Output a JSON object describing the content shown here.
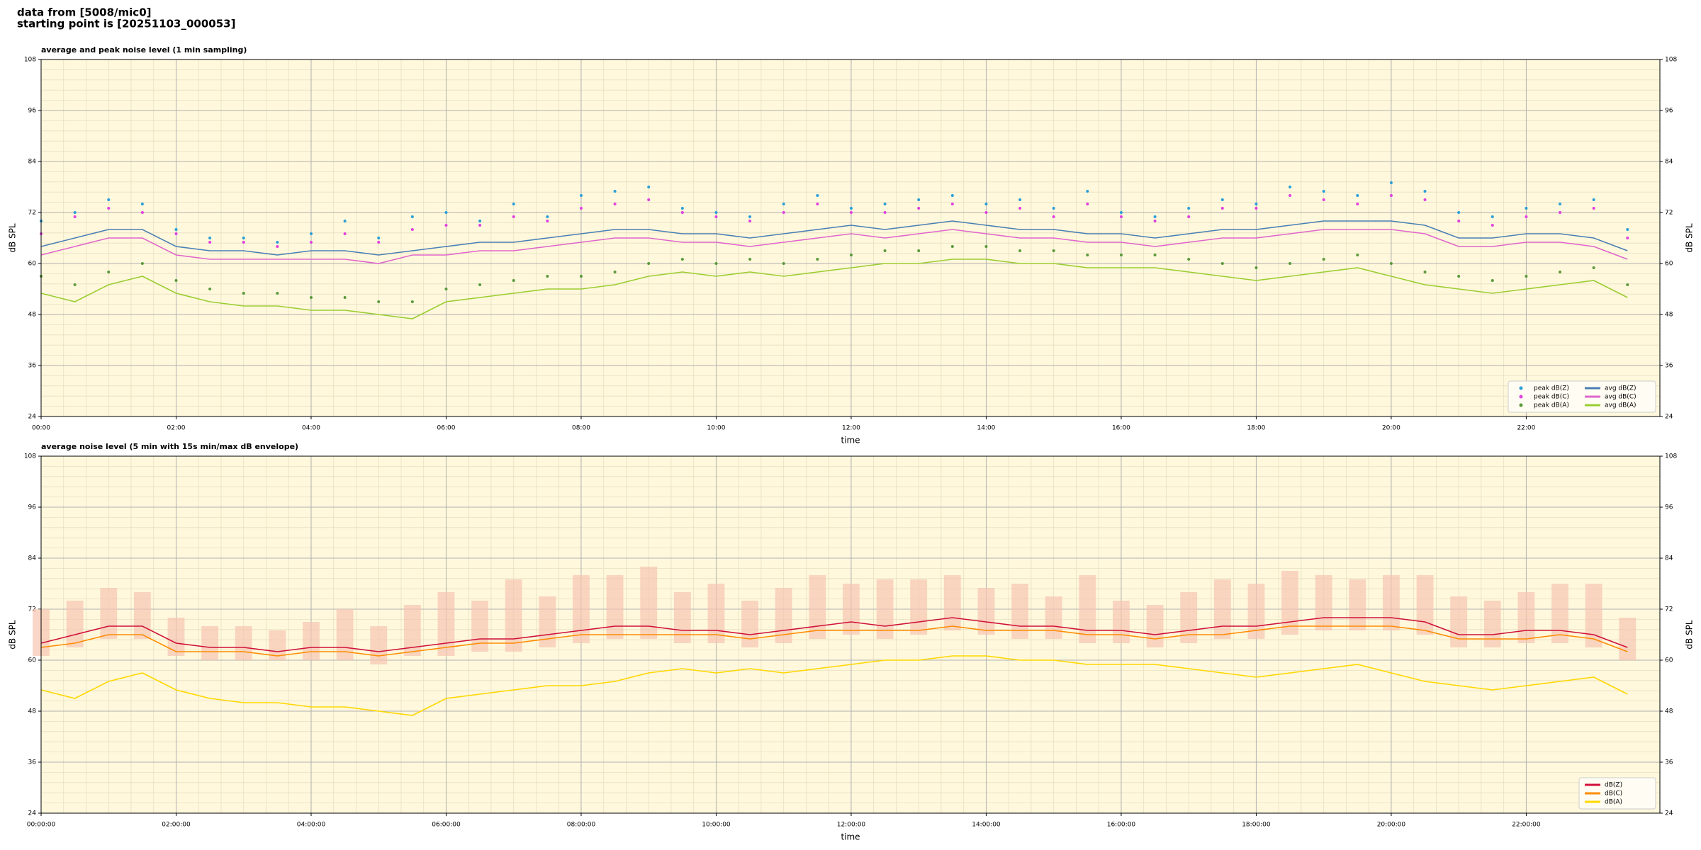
{
  "header": {
    "line1": "data from [5008/mic0]",
    "line2": "starting point is [20251103_000053]"
  },
  "chart_data": [
    {
      "type": "line",
      "title": "average and peak noise level (1 min sampling)",
      "xlabel": "time",
      "ylabel": "dB SPL",
      "xlim": [
        0,
        23.98
      ],
      "ylim": [
        24,
        108
      ],
      "yticks": [
        24,
        36,
        48,
        60,
        72,
        84,
        96,
        108
      ],
      "xticks": [
        {
          "value": 0,
          "label": "00:00"
        },
        {
          "value": 2,
          "label": "02:00"
        },
        {
          "value": 4,
          "label": "04:00"
        },
        {
          "value": 6,
          "label": "06:00"
        },
        {
          "value": 8,
          "label": "08:00"
        },
        {
          "value": 10,
          "label": "10:00"
        },
        {
          "value": 12,
          "label": "12:00"
        },
        {
          "value": 14,
          "label": "14:00"
        },
        {
          "value": 16,
          "label": "16:00"
        },
        {
          "value": 18,
          "label": "18:00"
        },
        {
          "value": 20,
          "label": "20:00"
        },
        {
          "value": 22,
          "label": "22:00"
        }
      ],
      "grid": true,
      "legend": "lower right",
      "legend_columns": 2,
      "background": "#fff8dc",
      "x": [
        0,
        0.5,
        1,
        1.5,
        2,
        2.5,
        3,
        3.5,
        4,
        4.5,
        5,
        5.5,
        6,
        6.5,
        7,
        7.5,
        8,
        8.5,
        9,
        9.5,
        10,
        10.5,
        11,
        11.5,
        12,
        12.5,
        13,
        13.5,
        14,
        14.5,
        15,
        15.5,
        16,
        16.5,
        17,
        17.5,
        18,
        18.5,
        19,
        19.5,
        20,
        20.5,
        21,
        21.5,
        22,
        22.5,
        23,
        23.5
      ],
      "series": [
        {
          "name": "peak dB(Z)",
          "type": "scatter",
          "color": "#2a9fd8",
          "values": [
            70,
            72,
            75,
            74,
            68,
            66,
            66,
            65,
            67,
            70,
            66,
            71,
            72,
            70,
            74,
            71,
            76,
            77,
            78,
            73,
            72,
            71,
            74,
            76,
            73,
            74,
            75,
            76,
            74,
            75,
            73,
            77,
            72,
            71,
            73,
            75,
            74,
            78,
            77,
            76,
            79,
            77,
            72,
            71,
            73,
            74,
            75,
            68
          ]
        },
        {
          "name": "peak dB(C)",
          "type": "scatter",
          "color": "#e23fe0",
          "values": [
            67,
            71,
            73,
            72,
            67,
            65,
            65,
            64,
            65,
            67,
            65,
            68,
            69,
            69,
            71,
            70,
            73,
            74,
            75,
            72,
            71,
            70,
            72,
            74,
            72,
            72,
            73,
            74,
            72,
            73,
            71,
            74,
            71,
            70,
            71,
            73,
            73,
            76,
            75,
            74,
            76,
            75,
            70,
            69,
            71,
            72,
            73,
            66
          ]
        },
        {
          "name": "peak dB(A)",
          "type": "scatter",
          "color": "#5a9a3a",
          "values": [
            57,
            55,
            58,
            60,
            56,
            54,
            53,
            53,
            52,
            52,
            51,
            51,
            54,
            55,
            56,
            57,
            57,
            58,
            60,
            61,
            60,
            61,
            60,
            61,
            62,
            63,
            63,
            64,
            64,
            63,
            63,
            62,
            62,
            62,
            61,
            60,
            59,
            60,
            61,
            62,
            60,
            58,
            57,
            56,
            57,
            58,
            59,
            55
          ]
        },
        {
          "name": "avg dB(Z)",
          "type": "line",
          "color": "#4a7fb5",
          "values": [
            64,
            66,
            68,
            68,
            64,
            63,
            63,
            62,
            63,
            63,
            62,
            63,
            64,
            65,
            65,
            66,
            67,
            68,
            68,
            67,
            67,
            66,
            67,
            68,
            69,
            68,
            69,
            70,
            69,
            68,
            68,
            67,
            67,
            66,
            67,
            68,
            68,
            69,
            70,
            70,
            70,
            69,
            66,
            66,
            67,
            67,
            66,
            63
          ]
        },
        {
          "name": "avg dB(C)",
          "type": "line",
          "color": "#e066cc",
          "values": [
            62,
            64,
            66,
            66,
            62,
            61,
            61,
            61,
            61,
            61,
            60,
            62,
            62,
            63,
            63,
            64,
            65,
            66,
            66,
            65,
            65,
            64,
            65,
            66,
            67,
            66,
            67,
            68,
            67,
            66,
            66,
            65,
            65,
            64,
            65,
            66,
            66,
            67,
            68,
            68,
            68,
            67,
            64,
            64,
            65,
            65,
            64,
            61
          ]
        },
        {
          "name": "avg dB(A)",
          "type": "line",
          "color": "#9acd32",
          "values": [
            53,
            51,
            55,
            57,
            53,
            51,
            50,
            50,
            49,
            49,
            48,
            47,
            51,
            52,
            53,
            54,
            54,
            55,
            57,
            58,
            57,
            58,
            57,
            58,
            59,
            60,
            60,
            61,
            61,
            60,
            60,
            59,
            59,
            59,
            58,
            57,
            56,
            57,
            58,
            59,
            57,
            55,
            54,
            53,
            54,
            55,
            56,
            52
          ]
        }
      ]
    },
    {
      "type": "line",
      "title": "average noise level (5 min with 15s min/max dB envelope)",
      "xlabel": "time",
      "ylabel": "dB SPL",
      "xlim": [
        0,
        23.98
      ],
      "ylim": [
        24,
        108
      ],
      "yticks": [
        24,
        36,
        48,
        60,
        72,
        84,
        96,
        108
      ],
      "xticks": [
        {
          "value": 0,
          "label": "00:00:00"
        },
        {
          "value": 2,
          "label": "02:00:00"
        },
        {
          "value": 4,
          "label": "04:00:00"
        },
        {
          "value": 6,
          "label": "06:00:00"
        },
        {
          "value": 8,
          "label": "08:00:00"
        },
        {
          "value": 10,
          "label": "10:00:00"
        },
        {
          "value": 12,
          "label": "12:00:00"
        },
        {
          "value": 14,
          "label": "14:00:00"
        },
        {
          "value": 16,
          "label": "16:00:00"
        },
        {
          "value": 18,
          "label": "18:00:00"
        },
        {
          "value": 20,
          "label": "20:00:00"
        },
        {
          "value": 22,
          "label": "22:00:00"
        }
      ],
      "grid": true,
      "legend": "lower right",
      "legend_columns": 1,
      "background": "#fff8dc",
      "x": [
        0,
        0.5,
        1,
        1.5,
        2,
        2.5,
        3,
        3.5,
        4,
        4.5,
        5,
        5.5,
        6,
        6.5,
        7,
        7.5,
        8,
        8.5,
        9,
        9.5,
        10,
        10.5,
        11,
        11.5,
        12,
        12.5,
        13,
        13.5,
        14,
        14.5,
        15,
        15.5,
        16,
        16.5,
        17,
        17.5,
        18,
        18.5,
        19,
        19.5,
        20,
        20.5,
        21,
        21.5,
        22,
        22.5,
        23,
        23.5
      ],
      "envelope": {
        "color": "#f6c4b0",
        "min": [
          61,
          63,
          65,
          65,
          61,
          60,
          60,
          60,
          60,
          60,
          59,
          61,
          61,
          62,
          62,
          63,
          64,
          65,
          65,
          64,
          64,
          63,
          64,
          65,
          66,
          65,
          66,
          67,
          66,
          65,
          65,
          64,
          64,
          63,
          64,
          65,
          65,
          66,
          67,
          67,
          67,
          66,
          63,
          63,
          64,
          64,
          63,
          60
        ],
        "max": [
          72,
          74,
          77,
          76,
          70,
          68,
          68,
          67,
          69,
          72,
          68,
          73,
          76,
          74,
          79,
          75,
          80,
          80,
          82,
          76,
          78,
          74,
          77,
          80,
          78,
          79,
          79,
          80,
          77,
          78,
          75,
          80,
          74,
          73,
          76,
          79,
          78,
          81,
          80,
          79,
          80,
          80,
          75,
          74,
          76,
          78,
          78,
          70
        ]
      },
      "series": [
        {
          "name": "dB(Z)",
          "type": "line",
          "color": "#d0103a",
          "values": [
            64,
            66,
            68,
            68,
            64,
            63,
            63,
            62,
            63,
            63,
            62,
            63,
            64,
            65,
            65,
            66,
            67,
            68,
            68,
            67,
            67,
            66,
            67,
            68,
            69,
            68,
            69,
            70,
            69,
            68,
            68,
            67,
            67,
            66,
            67,
            68,
            68,
            69,
            70,
            70,
            70,
            69,
            66,
            66,
            67,
            67,
            66,
            63
          ]
        },
        {
          "name": "dB(C)",
          "type": "line",
          "color": "#ff8c00",
          "values": [
            63,
            64,
            66,
            66,
            62,
            62,
            62,
            61,
            62,
            62,
            61,
            62,
            63,
            64,
            64,
            65,
            66,
            66,
            66,
            66,
            66,
            65,
            66,
            67,
            67,
            67,
            67,
            68,
            67,
            67,
            67,
            66,
            66,
            65,
            66,
            66,
            67,
            68,
            68,
            68,
            68,
            67,
            65,
            65,
            65,
            66,
            65,
            62
          ]
        },
        {
          "name": "dB(A)",
          "type": "line",
          "color": "#ffd700",
          "values": [
            53,
            51,
            55,
            57,
            53,
            51,
            50,
            50,
            49,
            49,
            48,
            47,
            51,
            52,
            53,
            54,
            54,
            55,
            57,
            58,
            57,
            58,
            57,
            58,
            59,
            60,
            60,
            61,
            61,
            60,
            60,
            59,
            59,
            59,
            58,
            57,
            56,
            57,
            58,
            59,
            57,
            55,
            54,
            53,
            54,
            55,
            56,
            52
          ]
        }
      ]
    }
  ]
}
